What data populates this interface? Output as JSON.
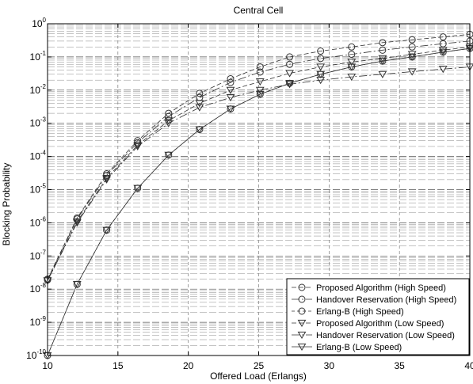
{
  "chart_data": {
    "type": "line",
    "title": "Central Cell",
    "xlabel": "Offered Load (Erlangs)",
    "ylabel": "Blocking Probability",
    "xlim": [
      10,
      40
    ],
    "ylim_log10": [
      -10,
      0
    ],
    "y_scale": "log",
    "grid": true,
    "legend_position": "bottom-right",
    "x_ticks": [
      {
        "value": 10,
        "label": "10"
      },
      {
        "value": 15,
        "label": "15"
      },
      {
        "value": 20,
        "label": "20"
      },
      {
        "value": 25,
        "label": "25"
      },
      {
        "value": 30,
        "label": "30"
      },
      {
        "value": 35,
        "label": "35"
      },
      {
        "value": 40,
        "label": "40"
      }
    ],
    "y_ticks": [
      {
        "exp": 0,
        "mant": "10",
        "sup": "0"
      },
      {
        "exp": -1,
        "mant": "10",
        "sup": "-1"
      },
      {
        "exp": -2,
        "mant": "10",
        "sup": "-2"
      },
      {
        "exp": -3,
        "mant": "10",
        "sup": "-3"
      },
      {
        "exp": -4,
        "mant": "10",
        "sup": "-4"
      },
      {
        "exp": -5,
        "mant": "10",
        "sup": "-5"
      },
      {
        "exp": -6,
        "mant": "10",
        "sup": "-6"
      },
      {
        "exp": -7,
        "mant": "10",
        "sup": "-7"
      },
      {
        "exp": -8,
        "mant": "10",
        "sup": "-8"
      },
      {
        "exp": -9,
        "mant": "10",
        "sup": "-9"
      },
      {
        "exp": -10,
        "mant": "10",
        "sup": "-10"
      }
    ],
    "series": [
      {
        "name": "Proposed Algorithm (High Speed)",
        "marker": "circle",
        "dash": "6,3",
        "x": [
          10,
          12.1,
          14.2,
          16.4,
          18.6,
          20.8,
          23,
          25.1,
          27.2,
          29.4,
          31.6,
          33.8,
          35.9,
          38.1,
          40
        ],
        "y": [
          2e-08,
          1.4e-06,
          3e-05,
          0.0003,
          0.002,
          0.008,
          0.022,
          0.05,
          0.1,
          0.15,
          0.2,
          0.27,
          0.33,
          0.4,
          0.48
        ]
      },
      {
        "name": "Handover Reservation (High Speed)",
        "marker": "circle",
        "dash": "10,3,2,3",
        "x": [
          10,
          12.1,
          14.2,
          16.4,
          18.6,
          20.8,
          23,
          25.1,
          27.2,
          29.4,
          31.6,
          33.8,
          35.9,
          38.1,
          40
        ],
        "y": [
          1.9e-08,
          1.3e-06,
          2.7e-05,
          0.00026,
          0.0016,
          0.006,
          0.017,
          0.035,
          0.06,
          0.09,
          0.12,
          0.16,
          0.2,
          0.25,
          0.3
        ]
      },
      {
        "name": "Erlang-B (High Speed)",
        "marker": "circle",
        "dash": "4,3",
        "x": [
          10,
          12.1,
          14.2,
          16.4,
          18.6,
          20.8,
          23,
          25.1,
          27.2,
          29.4,
          31.6,
          33.8,
          35.9,
          38.1,
          40
        ],
        "y": [
          1e-10,
          1.4e-08,
          6e-07,
          1.1e-05,
          0.00011,
          0.00065,
          0.0027,
          0.0075,
          0.016,
          0.03,
          0.05,
          0.075,
          0.1,
          0.14,
          0.18
        ]
      },
      {
        "name": "Proposed Algorithm (Low Speed)",
        "marker": "triangle-down",
        "dash": "6,3",
        "x": [
          10,
          12.1,
          14.2,
          16.4,
          18.6,
          20.8,
          23,
          25.1,
          27.2,
          29.4,
          31.6,
          33.8,
          35.9,
          38.1,
          40
        ],
        "y": [
          1.8e-08,
          1.1e-06,
          2.2e-05,
          0.00022,
          0.0012,
          0.004,
          0.01,
          0.018,
          0.032,
          0.05,
          0.07,
          0.09,
          0.12,
          0.16,
          0.2
        ]
      },
      {
        "name": "Handover Reservation (Low Speed)",
        "marker": "triangle-down",
        "dash": "10,3,2,3",
        "x": [
          10,
          12.1,
          14.2,
          16.4,
          18.6,
          20.8,
          23,
          25.1,
          27.2,
          29.4,
          31.6,
          33.8,
          35.9,
          38.1,
          40
        ],
        "y": [
          1.8e-08,
          1e-06,
          2e-05,
          0.0002,
          0.001,
          0.003,
          0.006,
          0.01,
          0.015,
          0.02,
          0.025,
          0.03,
          0.036,
          0.043,
          0.05
        ]
      },
      {
        "name": "Erlang-B (Low Speed)",
        "marker": "triangle-down",
        "dash": "",
        "x": [
          10,
          12.1,
          14.2,
          16.4,
          18.6,
          20.8,
          23,
          25.1,
          27.2,
          29.4,
          31.6,
          33.8,
          35.9,
          38.1,
          40
        ],
        "y": [
          1e-10,
          1.4e-08,
          6e-07,
          1.1e-05,
          0.00011,
          0.00065,
          0.0027,
          0.0075,
          0.016,
          0.03,
          0.05,
          0.075,
          0.1,
          0.14,
          0.18
        ]
      }
    ]
  }
}
